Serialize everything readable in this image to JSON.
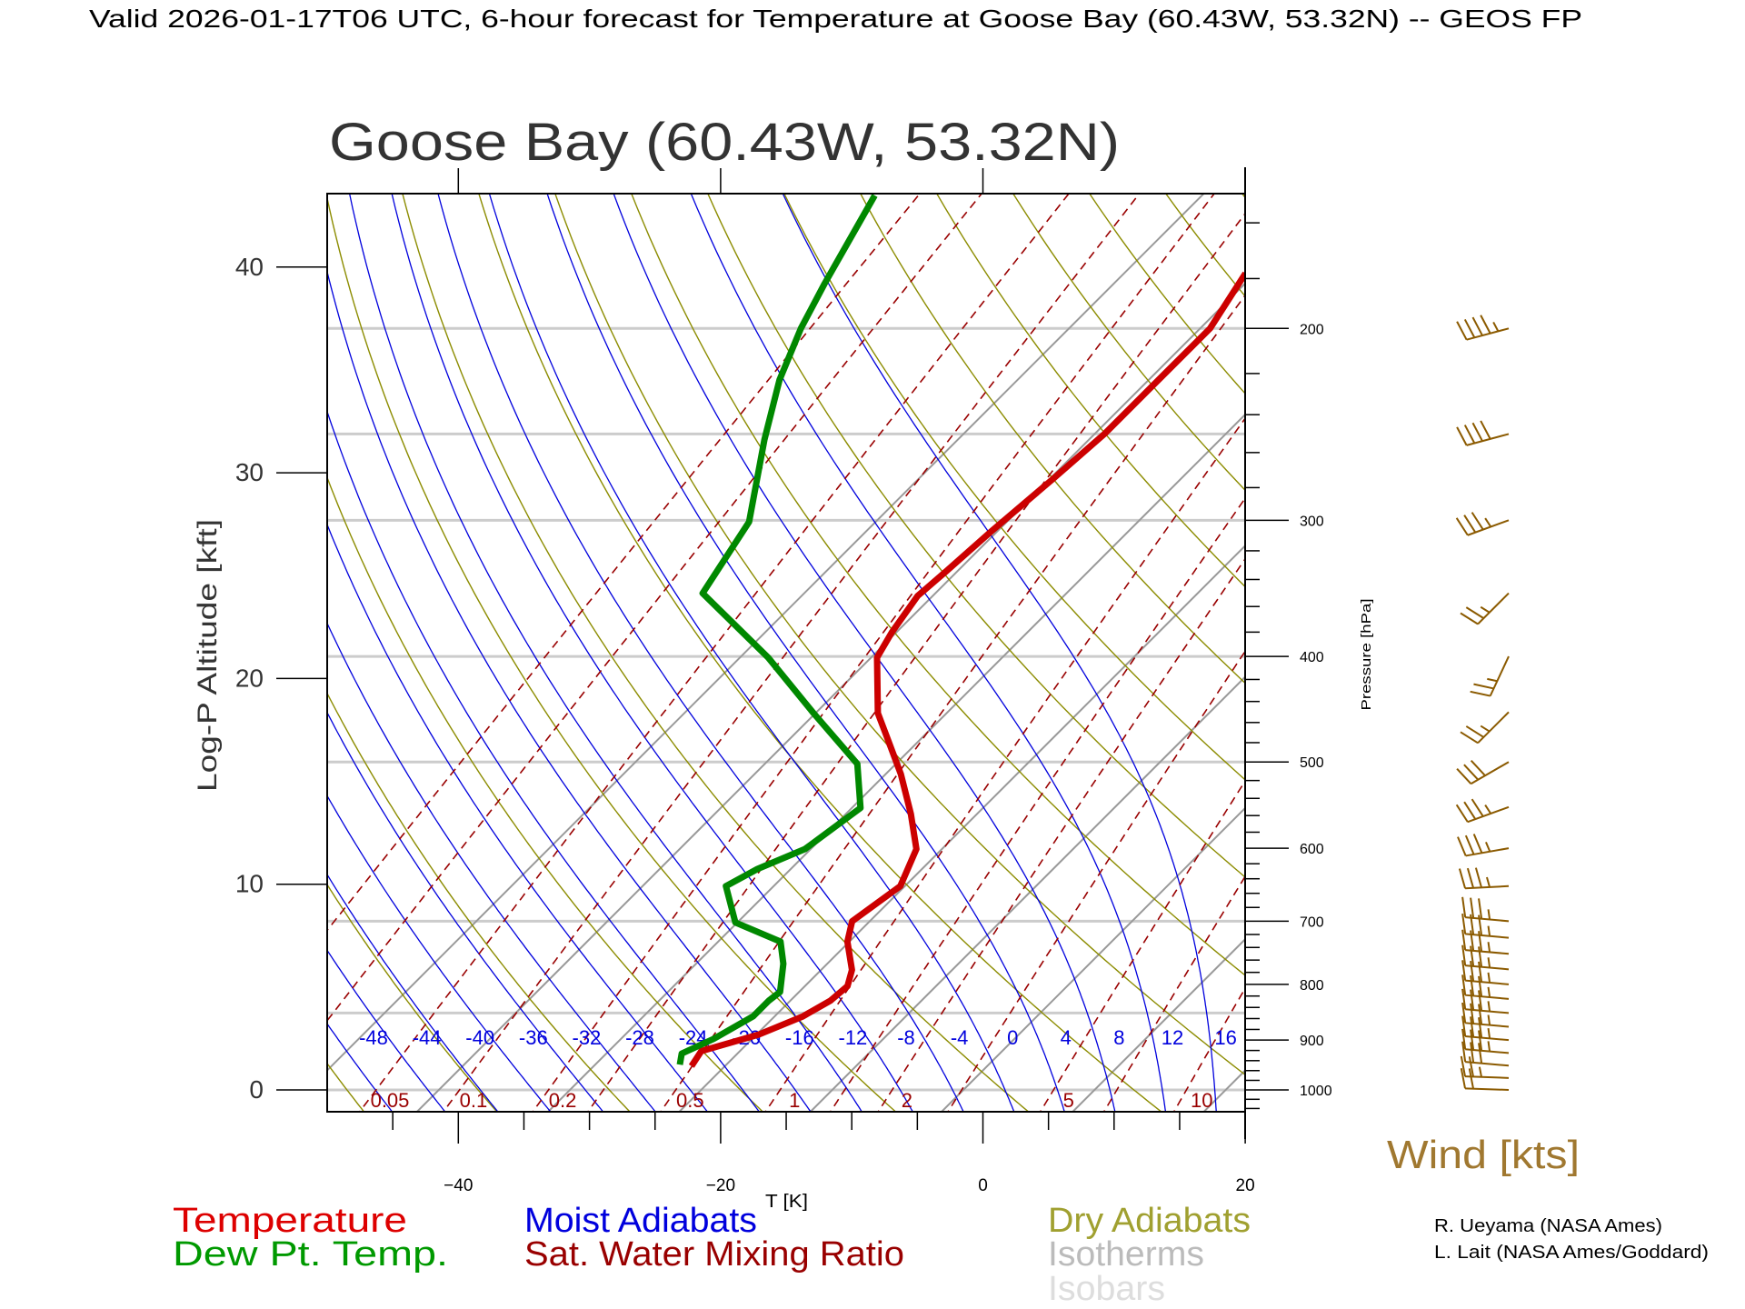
{
  "header": {
    "title": "Valid 2026-01-17T06 UTC, 6-hour forecast for Temperature at Goose Bay (60.43W, 53.32N) -- GEOS FP"
  },
  "chart_data": {
    "type": "line",
    "subtype": "skew-T log-P diagram",
    "title": "Goose Bay (60.43W, 53.32N)",
    "xlabel": "T [K]",
    "ylabel_left": "Log-P Altitude [kft]",
    "ylabel_right": "Pressure [hPa]",
    "xlim": [
      -50,
      20
    ],
    "ylim_hpa": [
      1047,
      150
    ],
    "x_ticks": [
      "-40",
      "-20",
      "0",
      "20"
    ],
    "x_tick_values": [
      -40,
      -20,
      0,
      20
    ],
    "alt_ticks": [
      "0",
      "10",
      "20",
      "30",
      "40"
    ],
    "alt_tick_values": [
      0,
      10,
      20,
      30,
      40
    ],
    "pressure_ticks": [
      "200",
      "300",
      "400",
      "500",
      "600",
      "700",
      "800",
      "900",
      "1000"
    ],
    "pressure_tick_values": [
      200,
      300,
      400,
      500,
      600,
      700,
      800,
      900,
      1000
    ],
    "isobars_hpa": [
      200,
      250,
      300,
      400,
      500,
      700,
      850,
      1000
    ],
    "isotherms_k": [
      220,
      230,
      240,
      250,
      260,
      270,
      280,
      290,
      300,
      310,
      320,
      330,
      340,
      350,
      360
    ],
    "moist_adiabat_labels": [
      "-48",
      "-44",
      "-40",
      "-36",
      "-32",
      "-28",
      "-24",
      "-20",
      "-16",
      "-12",
      "-8",
      "-4",
      "0",
      "4",
      "8",
      "12",
      "16"
    ],
    "moist_adiabat_values": [
      -48,
      -44,
      -40,
      -36,
      -32,
      -28,
      -24,
      -20,
      -16,
      -12,
      -8,
      -4,
      0,
      4,
      8,
      12,
      16
    ],
    "mixing_ratio_labels": [
      "0.05",
      "0.1",
      "0.2",
      "0.5",
      "1",
      "2",
      "5",
      "10"
    ],
    "mixing_ratio_values": [
      0.05,
      0.1,
      0.2,
      0.5,
      1,
      2,
      5,
      10
    ],
    "mixing_ratio_lines": [
      0.01,
      0.02,
      0.05,
      0.1,
      0.2,
      0.3,
      0.5,
      1,
      1.5,
      2,
      3,
      5,
      7,
      10,
      15,
      20
    ],
    "series": [
      {
        "name": "Temperature",
        "color": "#cc0000",
        "pressure": [
          951,
          921,
          890,
          856,
          828,
          803,
          776,
          731,
          700,
          650,
          601,
          558,
          513,
          478,
          451,
          401,
          380,
          352,
          334,
          307,
          275,
          250,
          223,
          200,
          178
        ],
        "temperature": [
          -25.7,
          -26.1,
          -23.0,
          -21.0,
          -20.1,
          -19.9,
          -20.8,
          -23.3,
          -24.5,
          -23.5,
          -25.1,
          -28.2,
          -32.0,
          -35.5,
          -38.4,
          -42.7,
          -43.5,
          -44.3,
          -44.0,
          -43.6,
          -42.9,
          -42.4,
          -42.4,
          -42.4,
          -43.9
        ]
      },
      {
        "name": "Dew Pt. Temp.",
        "color": "#008800",
        "pressure": [
          948,
          926,
          898,
          856,
          828,
          813,
          766,
          731,
          702,
          650,
          627,
          601,
          551,
          502,
          451,
          401,
          350,
          301,
          253,
          223,
          200,
          182,
          151
        ],
        "temperature": [
          -26.7,
          -27.4,
          -26.1,
          -24.8,
          -24.8,
          -24.6,
          -26.5,
          -28.4,
          -33.3,
          -36.8,
          -35.7,
          -33.6,
          -32.5,
          -36.1,
          -43.3,
          -51.0,
          -60.9,
          -62.8,
          -67.9,
          -71.3,
          -73.6,
          -75.2,
          -78.1
        ]
      }
    ],
    "winds": [
      {
        "p": 200,
        "dir": 255,
        "kts": 45
      },
      {
        "p": 250,
        "dir": 255,
        "kts": 40
      },
      {
        "p": 300,
        "dir": 250,
        "kts": 35
      },
      {
        "p": 350,
        "dir": 225,
        "kts": 25
      },
      {
        "p": 400,
        "dir": 205,
        "kts": 25
      },
      {
        "p": 450,
        "dir": 225,
        "kts": 25
      },
      {
        "p": 500,
        "dir": 240,
        "kts": 30
      },
      {
        "p": 550,
        "dir": 250,
        "kts": 35
      },
      {
        "p": 600,
        "dir": 260,
        "kts": 35
      },
      {
        "p": 650,
        "dir": 267,
        "kts": 35
      },
      {
        "p": 700,
        "dir": 275,
        "kts": 35
      },
      {
        "p": 725,
        "dir": 275,
        "kts": 35
      },
      {
        "p": 750,
        "dir": 275,
        "kts": 35
      },
      {
        "p": 775,
        "dir": 275,
        "kts": 35
      },
      {
        "p": 800,
        "dir": 275,
        "kts": 35
      },
      {
        "p": 825,
        "dir": 275,
        "kts": 35
      },
      {
        "p": 850,
        "dir": 275,
        "kts": 35
      },
      {
        "p": 875,
        "dir": 275,
        "kts": 35
      },
      {
        "p": 900,
        "dir": 275,
        "kts": 35
      },
      {
        "p": 925,
        "dir": 275,
        "kts": 35
      },
      {
        "p": 950,
        "dir": 275,
        "kts": 30
      },
      {
        "p": 975,
        "dir": 272,
        "kts": 25
      },
      {
        "p": 1000,
        "dir": 272,
        "kts": 20
      }
    ],
    "colors": {
      "temperature": "#cc0000",
      "dewpoint": "#008800",
      "moist": "#0000dd",
      "mixing": "#990000",
      "dry": "#8c8c00",
      "isotherm": "#999999",
      "isobar": "#cccccc",
      "wind": "#8b5a00"
    }
  },
  "legend": {
    "temperature": "Temperature",
    "dewpoint": "Dew Pt. Temp.",
    "moist": "Moist Adiabats",
    "mixing": "Sat. Water Mixing Ratio",
    "dry": "Dry Adiabats",
    "isotherms": "Isotherms",
    "isobars": "Isobars"
  },
  "wind_label": "Wind [kts]",
  "credits": [
    "R. Ueyama (NASA Ames)",
    "L. Lait (NASA Ames/Goddard)"
  ]
}
